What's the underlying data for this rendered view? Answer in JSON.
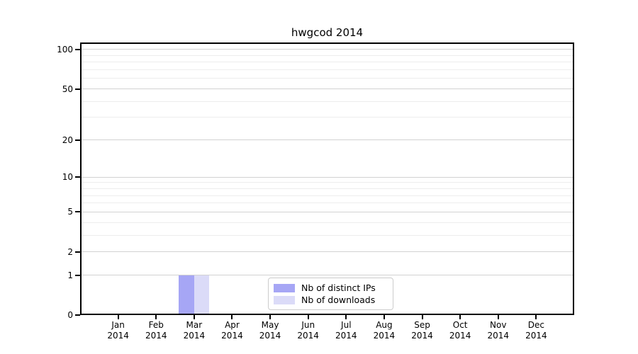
{
  "chart_data": {
    "type": "bar",
    "title": "hwgcod 2014",
    "x": {
      "months": [
        "Jan",
        "Feb",
        "Mar",
        "Apr",
        "May",
        "Jun",
        "Jul",
        "Aug",
        "Sep",
        "Oct",
        "Nov",
        "Dec"
      ],
      "year": "2014"
    },
    "series": [
      {
        "name": "Nb of distinct IPs",
        "color": "#a6a6f5",
        "values": [
          0,
          0,
          1,
          0,
          0,
          0,
          0,
          0,
          0,
          0,
          0,
          0
        ]
      },
      {
        "name": "Nb of downloads",
        "color": "#dbdbf8",
        "values": [
          0,
          0,
          1,
          0,
          0,
          0,
          0,
          0,
          0,
          0,
          0,
          0
        ]
      }
    ],
    "y_axis": {
      "scale": "log(1+x)",
      "major_ticks": [
        0,
        1,
        2,
        5,
        10,
        20,
        50,
        100
      ],
      "minor_gridlines": [
        3,
        4,
        6,
        7,
        8,
        9,
        30,
        40,
        60,
        70,
        80,
        90
      ],
      "range": [
        0,
        113
      ]
    },
    "grid": true,
    "legend": {
      "location": "inside-bottom-center",
      "entries": [
        "Nb of distinct IPs",
        "Nb of downloads"
      ]
    }
  }
}
